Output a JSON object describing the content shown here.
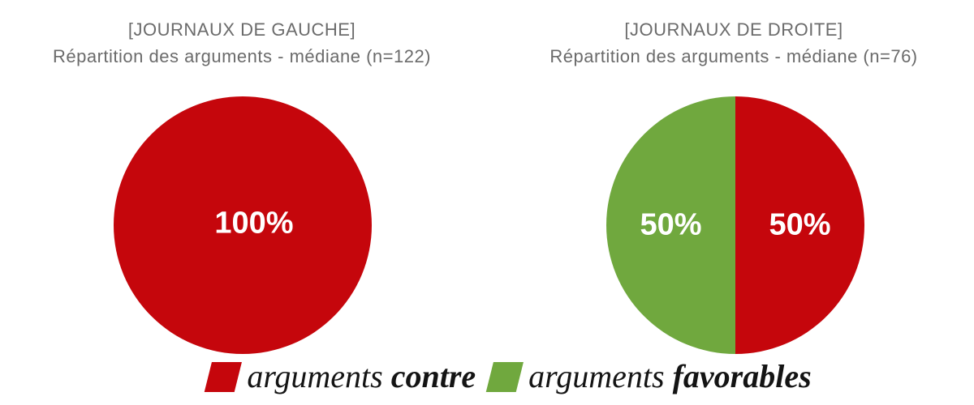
{
  "chart_data": [
    {
      "type": "pie",
      "title_lines": [
        "[JOURNAUX DE GAUCHE]",
        "Répartition des arguments - médiane (n=122)"
      ],
      "title": "[JOURNAUX DE GAUCHE] Répartition des arguments - médiane (n=122)",
      "n": 122,
      "start_angle_deg": 0,
      "direction": "clockwise",
      "data_label_color": "#ffffff",
      "slices": [
        {
          "name": "arguments contre",
          "value_pct": 100,
          "color": "#c5060c",
          "data_label": "100%"
        }
      ]
    },
    {
      "type": "pie",
      "title_lines": [
        "[JOURNAUX DE DROITE]",
        "Répartition des arguments - médiane (n=76)"
      ],
      "title": "[JOURNAUX DE DROITE] Répartition des arguments - médiane (n=76)",
      "n": 76,
      "start_angle_deg": 0,
      "direction": "clockwise",
      "data_label_color": "#ffffff",
      "slices": [
        {
          "name": "arguments contre",
          "value_pct": 50,
          "color": "#c5060c",
          "data_label": "50%"
        },
        {
          "name": "arguments favorables",
          "value_pct": 50,
          "color": "#70a83e",
          "data_label": "50%"
        }
      ]
    }
  ],
  "legend": {
    "position": "bottom-center",
    "items": [
      {
        "text_regular": "arguments",
        "text_bold": "contre",
        "color": "#c5060c"
      },
      {
        "text_regular": "arguments",
        "text_bold": "favorables",
        "color": "#70a83e"
      }
    ]
  },
  "colors": {
    "contre_red": "#c5060c",
    "favorable_green": "#70a83e",
    "title_gray": "#6b6b6b",
    "data_label_white": "#ffffff",
    "legend_text": "#141414",
    "background": "#ffffff"
  }
}
